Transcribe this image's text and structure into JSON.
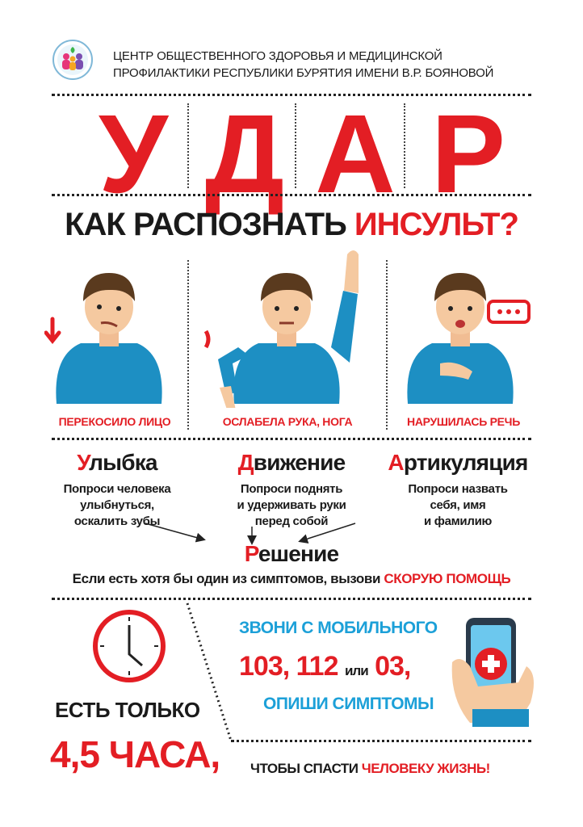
{
  "header": {
    "org_line1": "ЦЕНТР ОБЩЕСТВЕННОГО ЗДОРОВЬЯ И МЕДИЦИНСКОЙ",
    "org_line2": "ПРОФИЛАКТИКИ РЕСПУБЛИКИ БУРЯТИЯ ИМЕНИ В.Р. БОЯНОВОЙ"
  },
  "acronym": [
    "У",
    "Д",
    "А",
    "Р"
  ],
  "question": {
    "prefix": "КАК РАСПОЗНАТЬ",
    "highlight": "ИНСУЛЬТ?"
  },
  "symptoms": [
    {
      "caption": "ПЕРЕКОСИЛО ЛИЦО",
      "icon": "arrow-down-icon"
    },
    {
      "caption": "ОСЛАБЕЛА РУКА, НОГА",
      "icon": "weakness-icon"
    },
    {
      "caption": "НАРУШИЛАСЬ РЕЧЬ",
      "icon": "speech-bubble-icon"
    }
  ],
  "tests": [
    {
      "initial": "У",
      "rest": "лыбка",
      "lines": [
        "Попроси человека",
        "улыбнуться,",
        "оскалить зубы"
      ]
    },
    {
      "initial": "Д",
      "rest": "вижение",
      "lines": [
        "Попроси поднять",
        "и удерживать руки",
        "перед собой"
      ]
    },
    {
      "initial": "А",
      "rest": "ртикуляция",
      "lines": [
        "Попроси назвать",
        "себя, имя",
        "и фамилию"
      ]
    }
  ],
  "decision": {
    "initial": "Р",
    "rest": "ешение",
    "text": "Если есть хотя бы один из симптомов, вызови",
    "highlight": "СКОРУЮ ПОМОЩЬ"
  },
  "call": {
    "line1": "ЗВОНИ С МОБИЛЬНОГО",
    "numbers_a": "103, 112",
    "or": "или",
    "numbers_b": "03,",
    "line3": "ОПИШИ СИМПТОМЫ"
  },
  "time": {
    "only": "ЕСТЬ ТОЛЬКО",
    "hours": "4,5 ЧАСА,",
    "save_prefix": "ЧТОБЫ СПАСТИ",
    "save_highlight": "ЧЕЛОВЕКУ ЖИЗНЬ!"
  },
  "colors": {
    "red": "#e31e24",
    "blue": "#1ca0d8",
    "shirt": "#1d8fc3",
    "text": "#1a1a1a"
  }
}
